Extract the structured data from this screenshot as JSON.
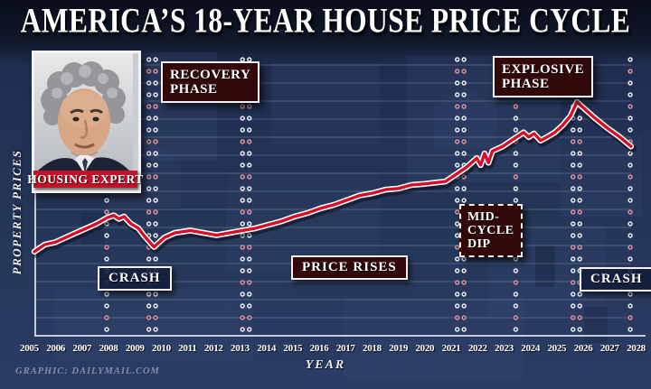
{
  "title": "AMERICA’S 18-YEAR HOUSE PRICE CYCLE",
  "credit": "GRAPHIC: DAILYMAIL.COM",
  "expert": {
    "badge": "HOUSING EXPERT",
    "photo": "elderly man with grey curly hair in dark suit"
  },
  "colors": {
    "line": "#d40f26",
    "line_outline": "#ffffff",
    "label_maroon": "#330808",
    "label_navy": "#121c3a",
    "badge_red": "#c4122b",
    "background_navy": "#253759"
  },
  "chart_data": {
    "type": "line",
    "title": "AMERICA’S 18-YEAR HOUSE PRICE CYCLE",
    "xlabel": "YEAR",
    "ylabel": "PROPERTY PRICES",
    "x_ticks": [
      "2005",
      "2006",
      "2007",
      "2008",
      "2009",
      "2010",
      "2011",
      "2012",
      "2013",
      "2014",
      "2015",
      "2016",
      "2017",
      "2018",
      "2019",
      "2020",
      "2021",
      "2022",
      "2023",
      "2024",
      "2025",
      "2026",
      "2027",
      "2028"
    ],
    "x_range": [
      2005,
      2028.2
    ],
    "y_axis": "unlabeled relative index 0-100",
    "grid": "faint horizontal lines, no y tick labels",
    "legend": "none",
    "line_color": "#d40f26",
    "line_outline": "#ffffff",
    "series": [
      {
        "name": "Property prices (relative index)",
        "points": [
          [
            2005.0,
            36
          ],
          [
            2005.4,
            39
          ],
          [
            2005.8,
            40
          ],
          [
            2006.2,
            42
          ],
          [
            2006.6,
            44
          ],
          [
            2007.0,
            46
          ],
          [
            2007.4,
            48
          ],
          [
            2007.8,
            50.5
          ],
          [
            2008.05,
            51.5
          ],
          [
            2008.25,
            50
          ],
          [
            2008.45,
            51
          ],
          [
            2008.7,
            48
          ],
          [
            2009.0,
            46
          ],
          [
            2009.2,
            43
          ],
          [
            2009.4,
            40.5
          ],
          [
            2009.6,
            38
          ],
          [
            2009.8,
            40
          ],
          [
            2010.0,
            42
          ],
          [
            2010.4,
            44
          ],
          [
            2011.0,
            45
          ],
          [
            2011.5,
            44
          ],
          [
            2012.0,
            43
          ],
          [
            2012.5,
            44
          ],
          [
            2013.0,
            45
          ],
          [
            2013.5,
            46
          ],
          [
            2014.0,
            47.5
          ],
          [
            2014.5,
            49
          ],
          [
            2015.0,
            51
          ],
          [
            2015.5,
            52.5
          ],
          [
            2016.0,
            54.5
          ],
          [
            2016.5,
            56
          ],
          [
            2017.0,
            58
          ],
          [
            2017.5,
            60
          ],
          [
            2018.0,
            61
          ],
          [
            2018.5,
            62.5
          ],
          [
            2019.0,
            63
          ],
          [
            2019.5,
            64.5
          ],
          [
            2020.0,
            65
          ],
          [
            2020.4,
            65.5
          ],
          [
            2020.8,
            66
          ],
          [
            2021.2,
            69
          ],
          [
            2021.6,
            72
          ],
          [
            2022.0,
            76
          ],
          [
            2022.15,
            73
          ],
          [
            2022.3,
            78
          ],
          [
            2022.45,
            74
          ],
          [
            2022.6,
            79
          ],
          [
            2023.0,
            81
          ],
          [
            2023.4,
            84
          ],
          [
            2023.8,
            87
          ],
          [
            2024.0,
            85
          ],
          [
            2024.2,
            86.5
          ],
          [
            2024.45,
            83.5
          ],
          [
            2024.7,
            85
          ],
          [
            2025.0,
            87
          ],
          [
            2025.3,
            90
          ],
          [
            2025.6,
            94
          ],
          [
            2025.85,
            100
          ],
          [
            2026.1,
            97.5
          ],
          [
            2026.5,
            93.5
          ],
          [
            2027.0,
            89
          ],
          [
            2027.5,
            85
          ],
          [
            2027.93,
            81
          ]
        ]
      }
    ],
    "phase_boundaries": [
      {
        "year": 2007.78,
        "double": false
      },
      {
        "year": 2009.4,
        "double": true
      },
      {
        "year": 2013.0,
        "double": true
      },
      {
        "year": 2021.25,
        "double": true
      },
      {
        "year": 2023.5,
        "double": false
      },
      {
        "year": 2025.7,
        "double": true
      },
      {
        "year": 2027.9,
        "double": false
      }
    ],
    "annotations": [
      {
        "label": "RECOVERY PHASE",
        "lines": [
          "RECOVERY",
          "PHASE"
        ],
        "x_year": 2010.8,
        "position": "top"
      },
      {
        "label": "EXPLOSIVE PHASE",
        "lines": [
          "EXPLOSIVE",
          "PHASE"
        ],
        "x_year": 2023.8,
        "position": "top"
      },
      {
        "label": "MID-CYCLE DIP",
        "lines": [
          "MID-",
          "CYCLE",
          "DIP"
        ],
        "x_year": 2022.4,
        "position": "middle"
      },
      {
        "label": "PRICE RISES",
        "x_year": 2015.8,
        "position": "lower"
      },
      {
        "label": "CRASH",
        "x_year": 2008.6,
        "position": "lower"
      },
      {
        "label": "CRASH",
        "x_year": 2026.8,
        "position": "lower"
      }
    ]
  }
}
